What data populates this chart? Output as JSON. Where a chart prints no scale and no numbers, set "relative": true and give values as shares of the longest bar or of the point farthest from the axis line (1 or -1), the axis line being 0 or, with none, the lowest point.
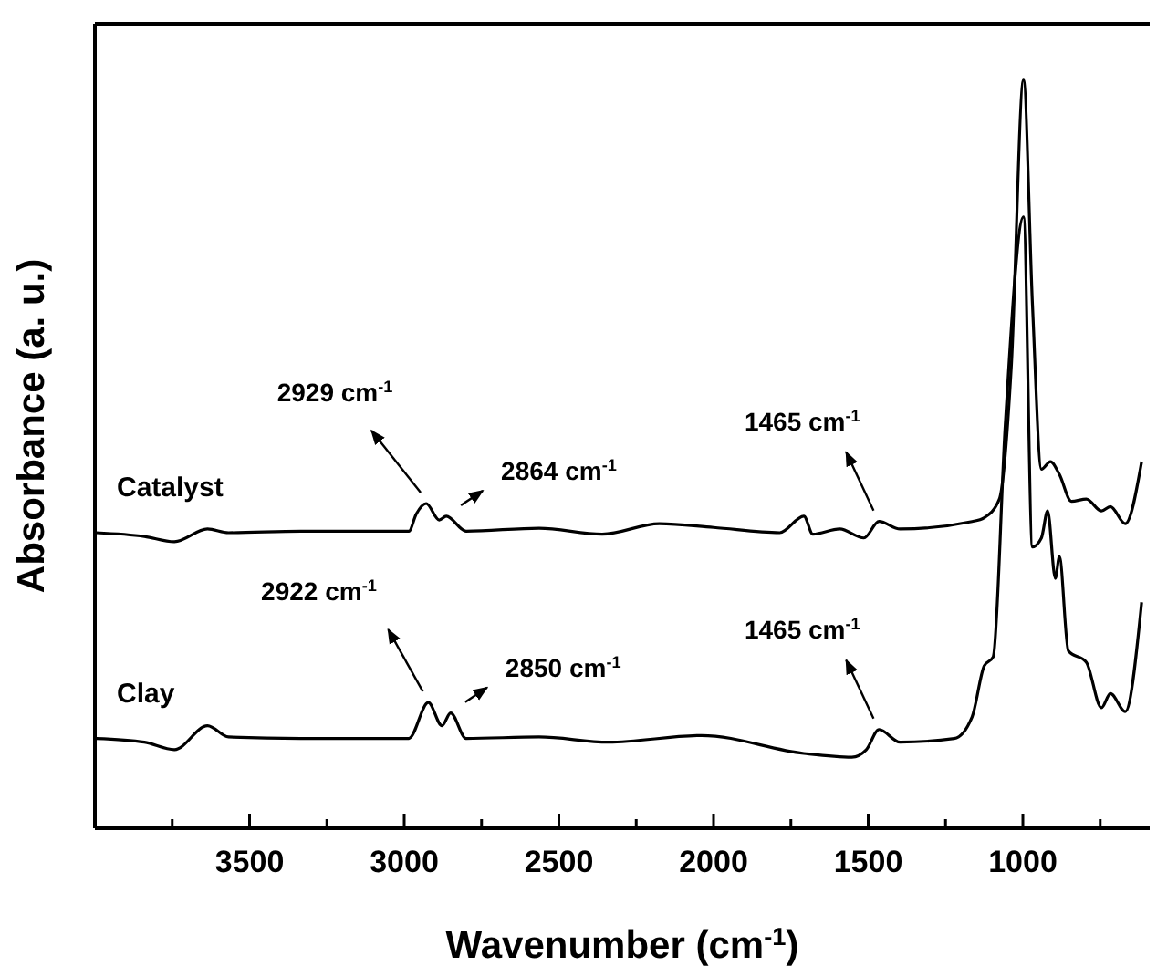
{
  "chart_data": {
    "type": "line",
    "relative": true,
    "xlabel": "Wavenumber (cm$^{-1}$)",
    "ylabel": "Absorbance (a. u.)",
    "xlim": [
      4000,
      590
    ],
    "xticks": [
      {
        "value": 3750,
        "label": null
      },
      3500,
      {
        "value": 3250,
        "label": null
      },
      3000,
      {
        "value": 2750,
        "label": null
      },
      2500,
      {
        "value": 2250,
        "label": null
      },
      2000,
      {
        "value": 1750,
        "label": null
      },
      1500,
      {
        "value": 1250,
        "label": null
      },
      1000,
      {
        "value": 750,
        "label": null
      }
    ],
    "tick_labels": "x",
    "grid": false,
    "marker": "none",
    "line_style": "solid",
    "series": [
      {
        "name": "Catalyst",
        "color": "#000000",
        "x": [
          3996,
          3840,
          3743,
          3636,
          3568,
          3335,
          2985,
          2961,
          2929,
          2887,
          2864,
          2800,
          2564,
          2360,
          2175,
          2000,
          1786,
          1708,
          1679,
          1592,
          1514,
          1465,
          1397,
          1164,
          1125,
          1076,
          1037,
          998,
          969,
          940,
          911,
          882,
          843,
          795,
          746,
          717,
          669,
          616
        ],
        "values": [
          0.395,
          0.39,
          0.383,
          0.4,
          0.395,
          0.397,
          0.397,
          0.42,
          0.434,
          0.412,
          0.417,
          0.397,
          0.401,
          0.393,
          0.407,
          0.402,
          0.395,
          0.417,
          0.393,
          0.4,
          0.388,
          0.41,
          0.4,
          0.41,
          0.415,
          0.44,
          0.62,
          1.0,
          0.7,
          0.48,
          0.49,
          0.473,
          0.437,
          0.44,
          0.424,
          0.43,
          0.407,
          0.49
        ]
      },
      {
        "name": "Clay",
        "color": "#000000",
        "x": [
          3996,
          3840,
          3743,
          3636,
          3568,
          3335,
          2985,
          2922,
          2878,
          2850,
          2800,
          2564,
          2340,
          2039,
          1708,
          1553,
          1506,
          1465,
          1397,
          1222,
          1164,
          1125,
          1096,
          1057,
          998,
          969,
          940,
          920,
          895,
          882,
          853,
          795,
          746,
          717,
          669,
          616
        ],
        "values": [
          0.12,
          0.115,
          0.105,
          0.137,
          0.122,
          0.12,
          0.12,
          0.168,
          0.137,
          0.154,
          0.12,
          0.122,
          0.115,
          0.124,
          0.1,
          0.095,
          0.105,
          0.132,
          0.115,
          0.12,
          0.149,
          0.217,
          0.229,
          0.539,
          0.817,
          0.376,
          0.388,
          0.424,
          0.334,
          0.363,
          0.237,
          0.222,
          0.161,
          0.18,
          0.156,
          0.302
        ]
      }
    ],
    "annotations": [
      {
        "text": "2929 cm$^{-1}$",
        "x": 2929,
        "y": 0.434
      },
      {
        "text": "2864 cm$^{-1}$",
        "x": 2864,
        "y": 0.417
      },
      {
        "text": "1465 cm$^{-1}$",
        "x": 1465,
        "y": 0.41
      },
      {
        "text": "2922 cm$^{-1}$",
        "x": 2922,
        "y": 0.168
      },
      {
        "text": "2850 cm$^{-1}$",
        "x": 2850,
        "y": 0.154
      },
      {
        "text": "1465 cm$^{-1}$",
        "x": 1465,
        "y": 0.132
      }
    ]
  }
}
